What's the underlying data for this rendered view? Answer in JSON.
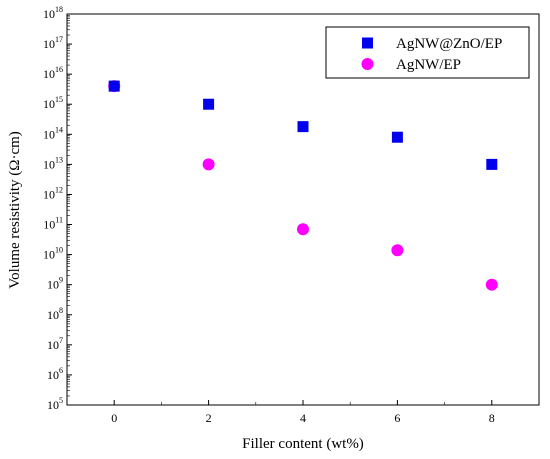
{
  "chart_data": {
    "type": "scatter",
    "title": "",
    "xlabel": "Filler content (wt%)",
    "ylabel": "Volume resistivity (Ω·cm)",
    "x_ticks": [
      0,
      2,
      4,
      6,
      8
    ],
    "xlim": [
      -1,
      9
    ],
    "ylim": [
      100000.0,
      1e+18
    ],
    "y_scale": "log",
    "y_tick_exponents": [
      5,
      6,
      7,
      8,
      9,
      10,
      11,
      12,
      13,
      14,
      15,
      16,
      17,
      18
    ],
    "y_tick_base": "10",
    "grid": false,
    "legend_position": "top-right",
    "series": [
      {
        "name": "AgNW@ZnO/EP",
        "marker": "square",
        "color": "#0000ee",
        "x": [
          0,
          2,
          4,
          6,
          8
        ],
        "y": [
          4000000000000000.0,
          1000000000000000.0,
          180000000000000.0,
          80000000000000.0,
          10000000000000.0
        ]
      },
      {
        "name": "AgNW/EP",
        "marker": "circle",
        "color": "#ff00ff",
        "x": [
          0,
          2,
          4,
          6,
          8
        ],
        "y": [
          4000000000000000.0,
          10000000000000.0,
          70000000000.0,
          14000000000.0,
          1000000000.0
        ]
      }
    ]
  }
}
